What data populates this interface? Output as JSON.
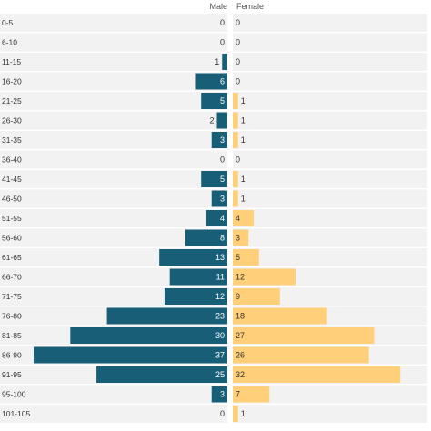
{
  "chart_data": {
    "type": "bar",
    "orientation": "horizontal",
    "layout": "population-pyramid",
    "categories": [
      "0-5",
      "6-10",
      "11-15",
      "16-20",
      "21-25",
      "26-30",
      "31-35",
      "36-40",
      "41-45",
      "46-50",
      "51-55",
      "56-60",
      "61-65",
      "66-70",
      "71-75",
      "76-80",
      "81-85",
      "86-90",
      "91-95",
      "95-100",
      "101-105"
    ],
    "series": [
      {
        "name": "Male",
        "color": "#195e77",
        "values": [
          0,
          0,
          1,
          6,
          5,
          2,
          3,
          0,
          5,
          3,
          4,
          8,
          13,
          11,
          12,
          23,
          30,
          37,
          25,
          3,
          0
        ]
      },
      {
        "name": "Female",
        "color": "#ffcf79",
        "values": [
          0,
          0,
          0,
          0,
          1,
          1,
          1,
          0,
          1,
          1,
          4,
          3,
          5,
          12,
          9,
          18,
          27,
          26,
          32,
          7,
          1
        ]
      }
    ],
    "title": "",
    "xlabel": "",
    "ylabel": "",
    "xlim": [
      0,
      37
    ],
    "grid": false,
    "row_background": "#f2f2f2",
    "legend": "top-center"
  }
}
